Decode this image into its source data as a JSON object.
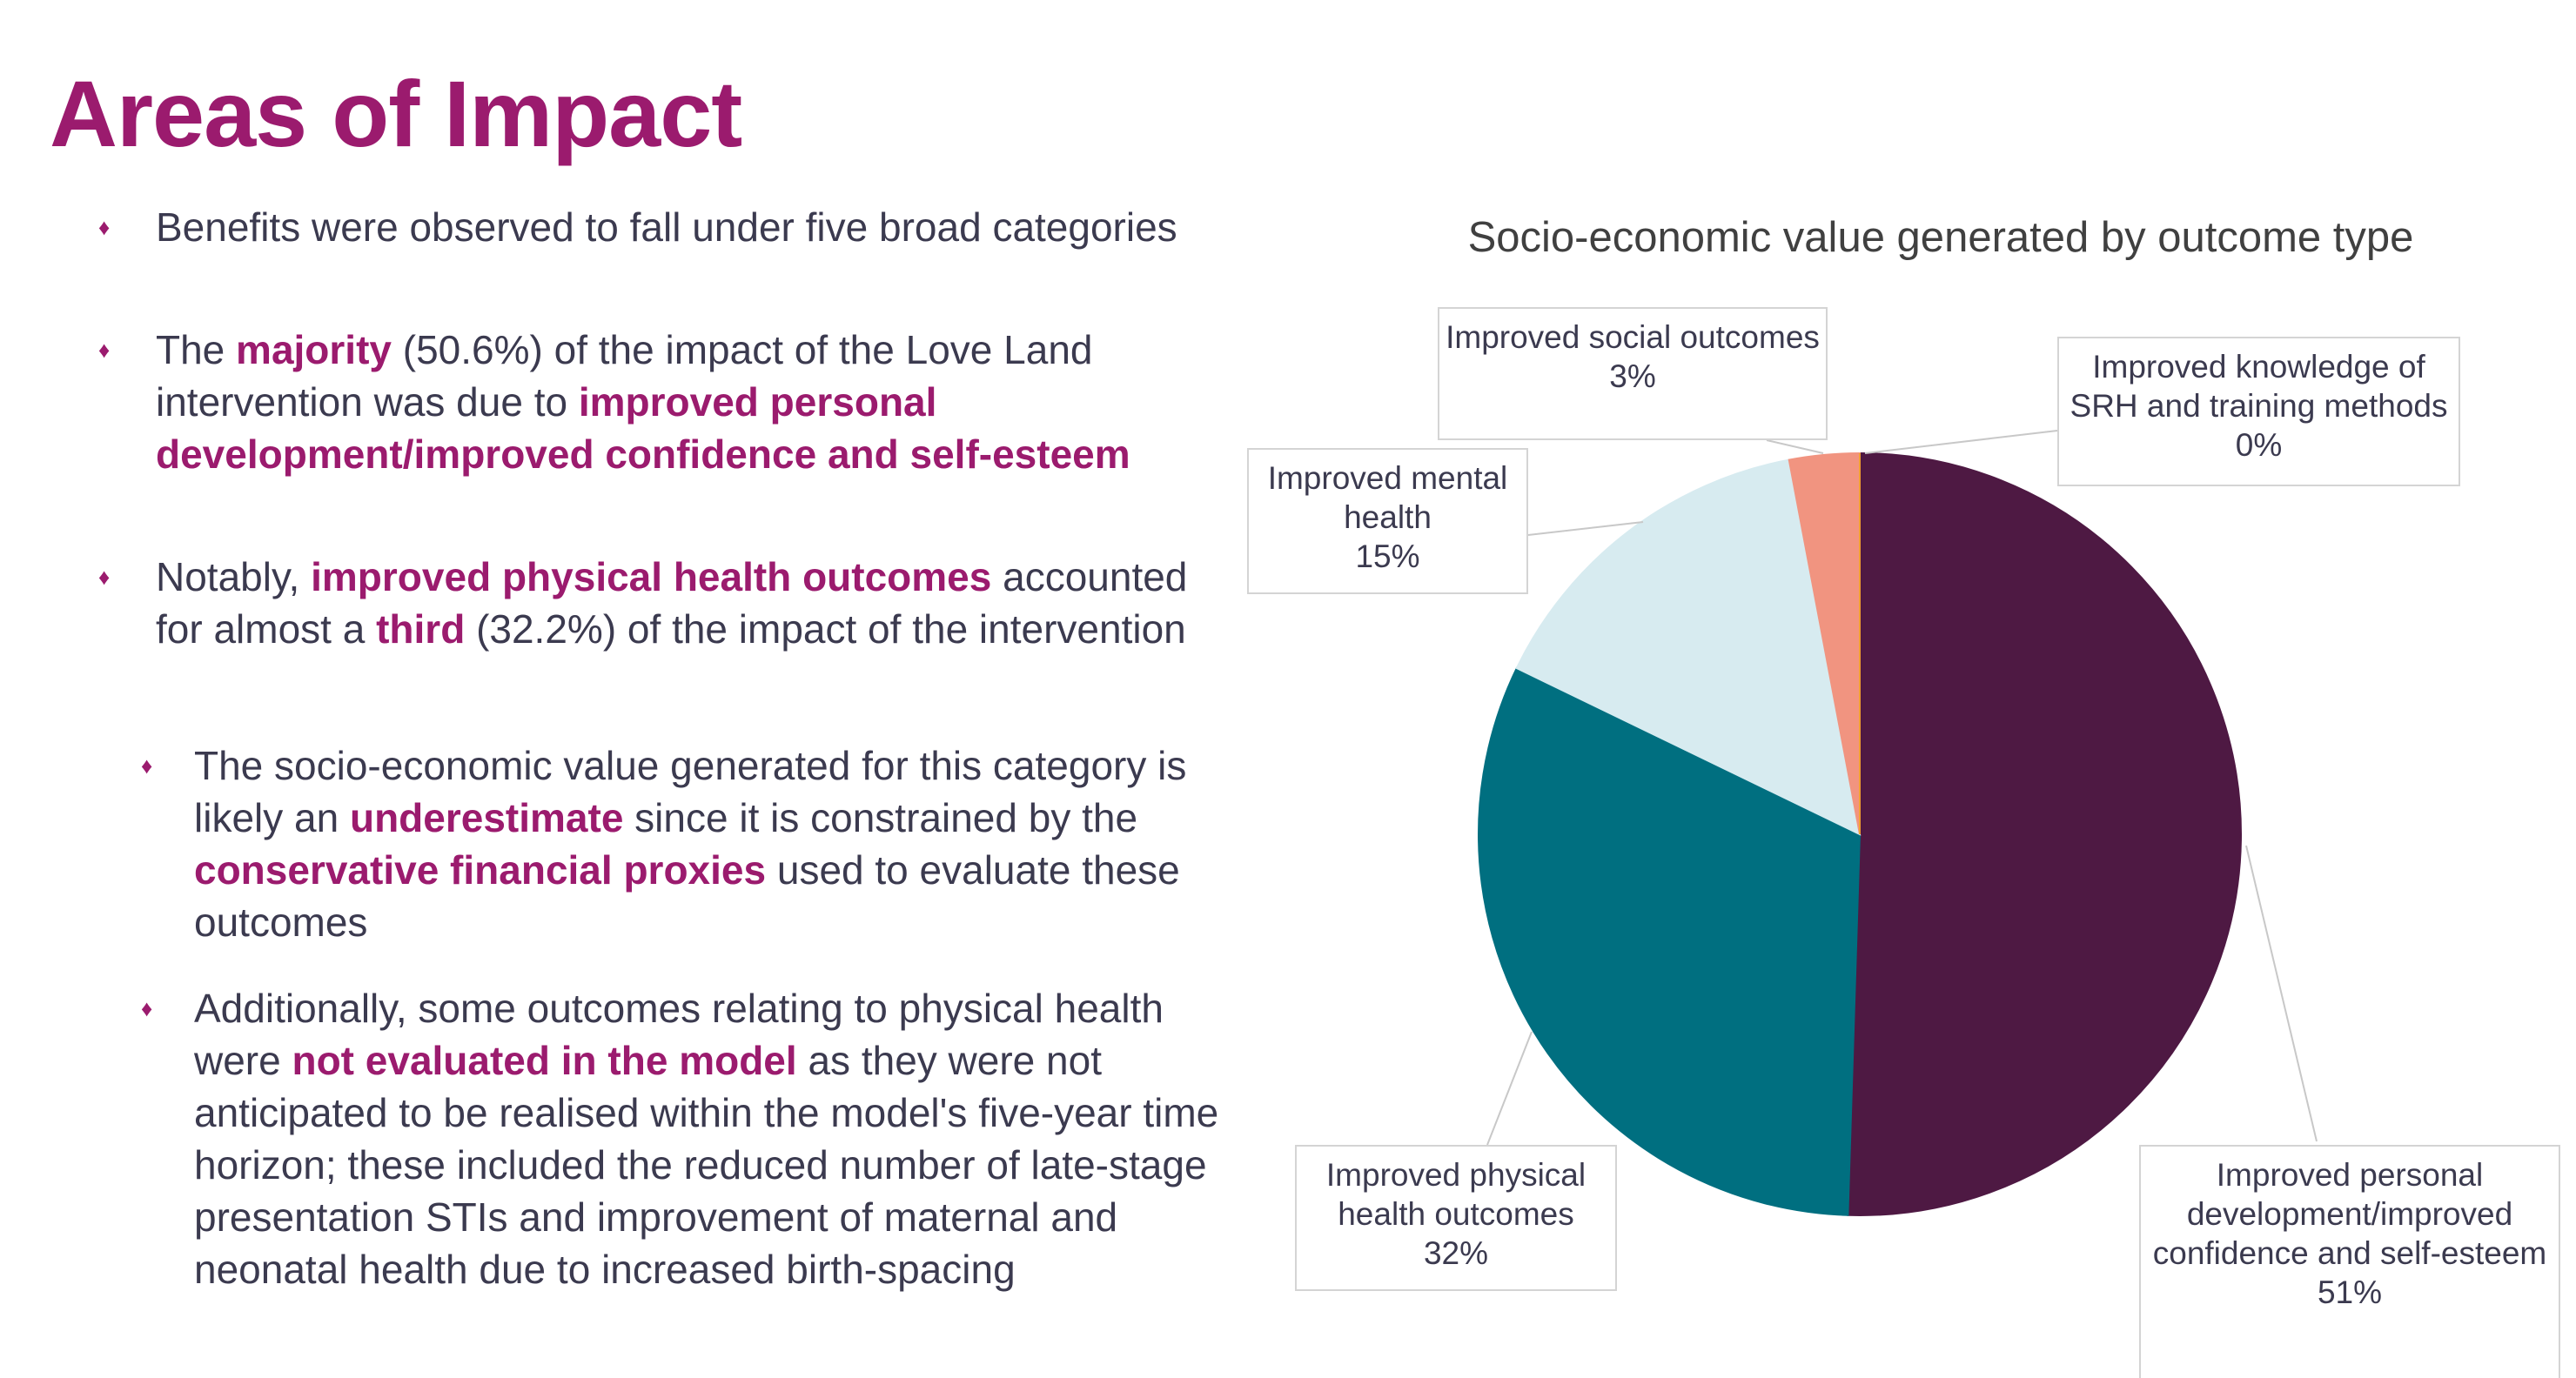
{
  "title": "Areas of Impact",
  "bullets": [
    {
      "level": 1,
      "runs": [
        {
          "text": "Benefits were observed to fall under five broad categories",
          "bold": false
        }
      ]
    },
    {
      "level": 1,
      "runs": [
        {
          "text": "The ",
          "bold": false
        },
        {
          "text": "majority",
          "bold": true
        },
        {
          "text": " (50.6%) of the impact of the Love Land intervention was due to ",
          "bold": false
        },
        {
          "text": "improved personal development/improved confidence and self-esteem",
          "bold": true
        }
      ]
    },
    {
      "level": 1,
      "runs": [
        {
          "text": "Notably, ",
          "bold": false
        },
        {
          "text": "improved physical health outcomes",
          "bold": true
        },
        {
          "text": " accounted for almost a ",
          "bold": false
        },
        {
          "text": "third",
          "bold": true
        },
        {
          "text": " (32.2%) of the impact of the intervention",
          "bold": false
        }
      ]
    },
    {
      "level": 2,
      "runs": [
        {
          "text": "The socio-economic value generated for this category is likely an ",
          "bold": false
        },
        {
          "text": "underestimate",
          "bold": true
        },
        {
          "text": " since it is constrained by the ",
          "bold": false
        },
        {
          "text": "conservative financial proxies",
          "bold": true
        },
        {
          "text": " used to evaluate these outcomes",
          "bold": false
        }
      ]
    },
    {
      "level": 2,
      "runs": [
        {
          "text": "Additionally, some outcomes relating to physical health were ",
          "bold": false
        },
        {
          "text": "not evaluated in the model",
          "bold": true
        },
        {
          "text": " as they were not anticipated to be realised within the model's five-year time horizon; these included the reduced number of late-stage presentation STIs and improvement of maternal and neonatal health due to increased birth-spacing",
          "bold": false
        }
      ]
    }
  ],
  "chart_data": {
    "type": "pie",
    "title": "Socio-economic value generated by outcome type",
    "categories": [
      "Improved personal development/improved confidence and self-esteem",
      "Improved physical health outcomes",
      "Improved mental health",
      "Improved social outcomes",
      "Improved knowledge of SRH and training methods"
    ],
    "values": [
      51,
      32,
      15,
      3,
      0
    ],
    "value_labels": [
      "51%",
      "32%",
      "15%",
      "3%",
      "0%"
    ],
    "colors": [
      "#4e1943",
      "#006f80",
      "#d7ebf0",
      "#f19480",
      "#f0a030"
    ]
  }
}
